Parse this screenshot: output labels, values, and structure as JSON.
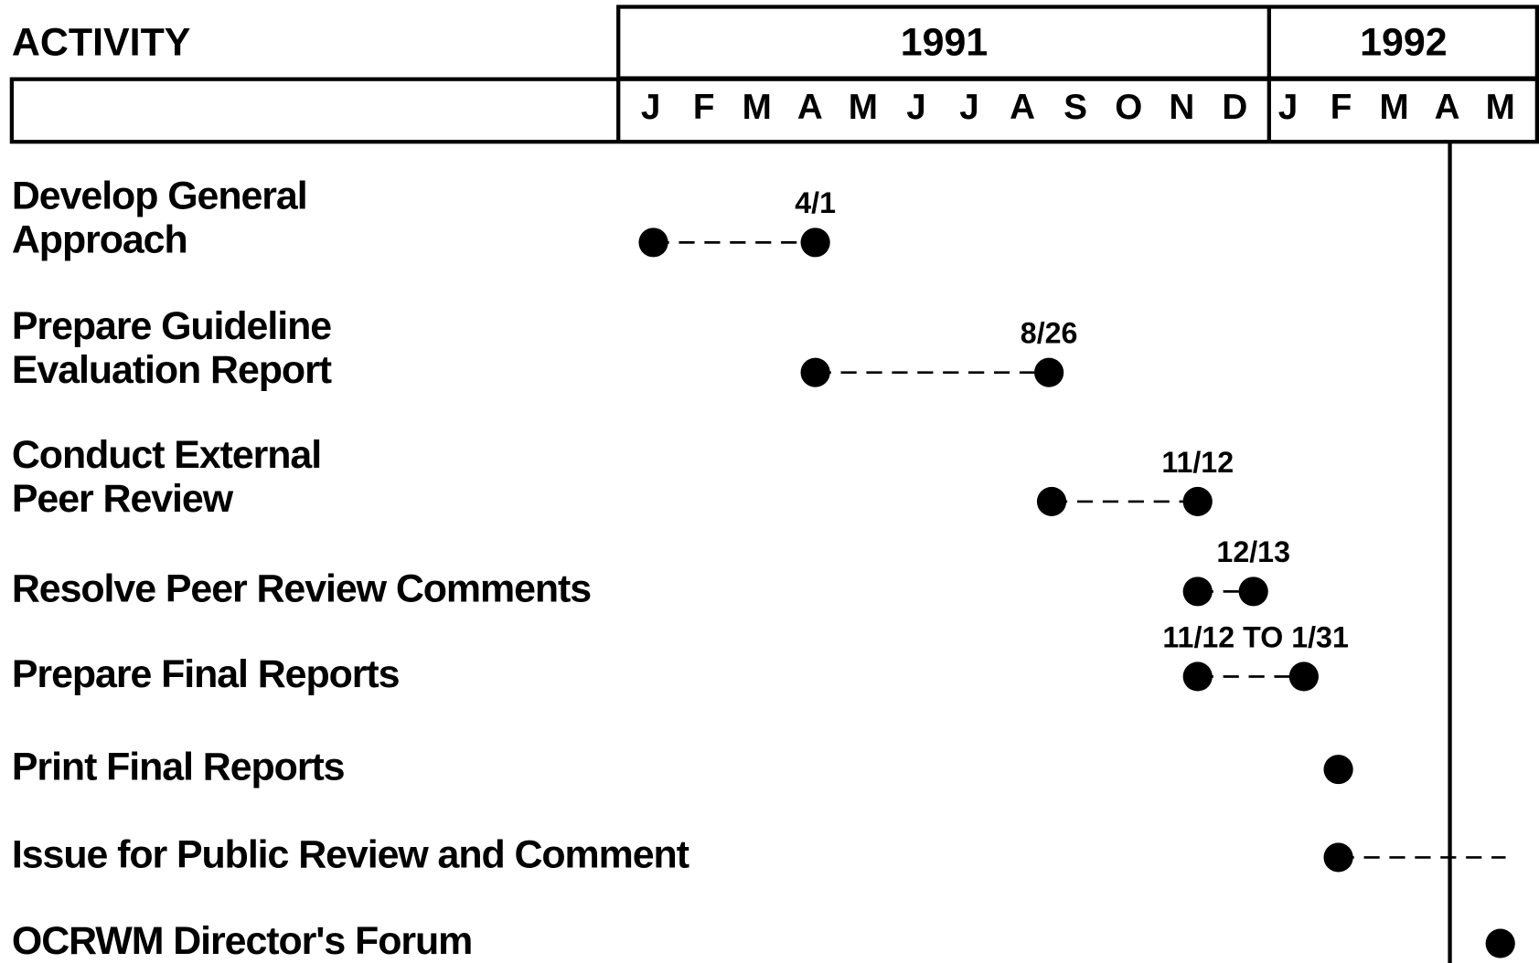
{
  "header": {
    "activity": "ACTIVITY",
    "years": [
      "1991",
      "1992"
    ],
    "months": [
      "J",
      "F",
      "M",
      "A",
      "M",
      "J",
      "J",
      "A",
      "S",
      "O",
      "N",
      "D",
      "J",
      "F",
      "M",
      "A",
      "M"
    ]
  },
  "timeline": {
    "today": 15.05
  },
  "activities": [
    {
      "label": [
        "Develop General",
        "Approach"
      ],
      "start": 0.05,
      "end": 3.1,
      "date_label": "4/1"
    },
    {
      "label": [
        "Prepare Guideline",
        "Evaluation Report"
      ],
      "start": 3.1,
      "end": 7.5,
      "date_label": "8/26"
    },
    {
      "label": [
        "Conduct External",
        "Peer Review"
      ],
      "start": 7.55,
      "end": 10.3,
      "date_label": "11/12"
    },
    {
      "label": [
        "Resolve Peer Review Comments"
      ],
      "start": 10.3,
      "end": 11.35,
      "date_label": "12/13"
    },
    {
      "label": [
        "Prepare Final Reports"
      ],
      "start": 10.3,
      "end": 12.3,
      "date_label": "11/12 TO 1/31"
    },
    {
      "label": [
        "Print Final Reports"
      ],
      "start": 12.95
    },
    {
      "label": [
        "Issue for Public Review and Comment"
      ],
      "start": 12.95,
      "end": 16.1
    },
    {
      "label": [
        "OCRWM Director's Forum"
      ],
      "start": 16.0
    }
  ]
}
